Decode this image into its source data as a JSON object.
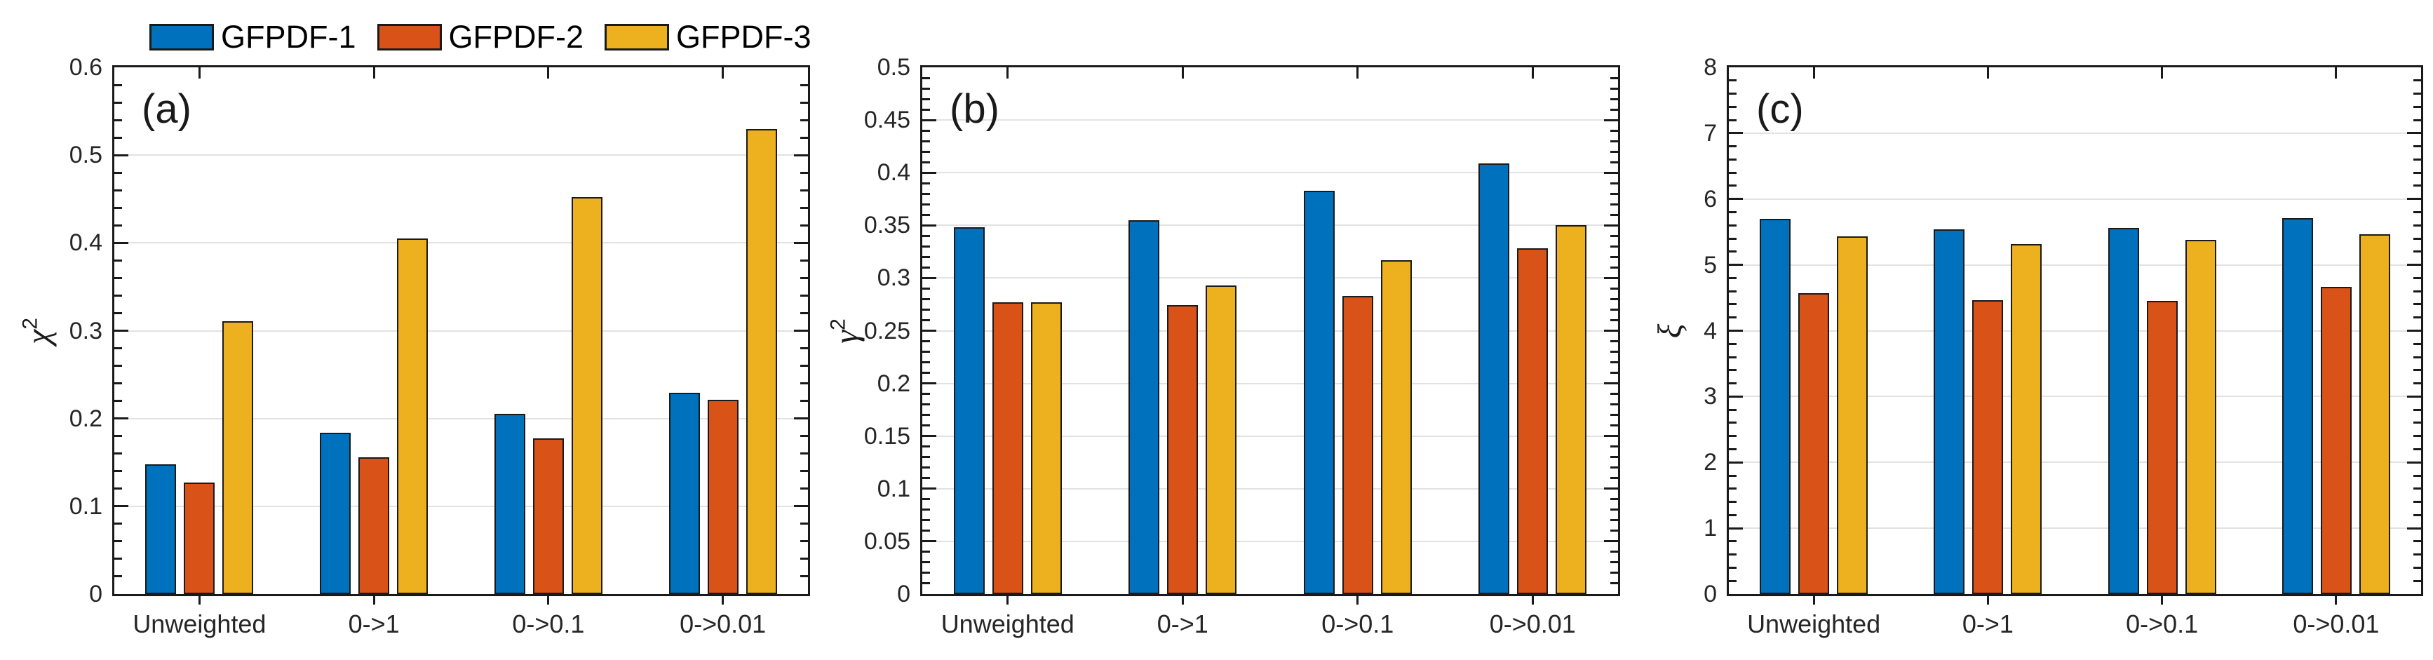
{
  "figure": {
    "background": "#ffffff"
  },
  "palette": {
    "series_blue": "#0072BD",
    "series_orange": "#D95319",
    "series_yellow": "#EDB120",
    "axis_color": "#1a1a1a",
    "grid_color": "#e2e2e2"
  },
  "legend": {
    "items": [
      {
        "label": "GFPDF-1",
        "color": "#0072BD"
      },
      {
        "label": "GFPDF-2",
        "color": "#D95319"
      },
      {
        "label": "GFPDF-3",
        "color": "#EDB120"
      }
    ],
    "position": "top-left"
  },
  "chart_data": [
    {
      "type": "bar",
      "panel_label": "(a)",
      "ylabel_symbol": "χ",
      "ylabel_exp": "2",
      "ylim": [
        0,
        0.6
      ],
      "yticks": [
        0,
        0.1,
        0.2,
        0.3,
        0.4,
        0.5,
        0.6
      ],
      "ytick_labels": [
        "0",
        "0.1",
        "0.2",
        "0.3",
        "0.4",
        "0.5",
        "0.6"
      ],
      "minor_tick_step": 0.02,
      "grid": "horizontal-major",
      "categories": [
        "Unweighted",
        "0->1",
        "0->0.1",
        "0->0.01"
      ],
      "series": [
        {
          "name": "GFPDF-1",
          "color": "#0072BD",
          "values": [
            0.148,
            0.184,
            0.205,
            0.229
          ]
        },
        {
          "name": "GFPDF-2",
          "color": "#D95319",
          "values": [
            0.127,
            0.156,
            0.177,
            0.221
          ]
        },
        {
          "name": "GFPDF-3",
          "color": "#EDB120",
          "values": [
            0.311,
            0.405,
            0.452,
            0.53
          ]
        }
      ]
    },
    {
      "type": "bar",
      "panel_label": "(b)",
      "ylabel_symbol": "γ",
      "ylabel_exp": "2",
      "ylim": [
        0,
        0.5
      ],
      "yticks": [
        0,
        0.05,
        0.1,
        0.15,
        0.2,
        0.25,
        0.3,
        0.35,
        0.4,
        0.45,
        0.5
      ],
      "ytick_labels": [
        "0",
        "0.05",
        "0.1",
        "0.15",
        "0.2",
        "0.25",
        "0.3",
        "0.35",
        "0.4",
        "0.45",
        "0.5"
      ],
      "minor_tick_step": 0.01,
      "grid": "horizontal-major",
      "categories": [
        "Unweighted",
        "0->1",
        "0->0.1",
        "0->0.01"
      ],
      "series": [
        {
          "name": "GFPDF-1",
          "color": "#0072BD",
          "values": [
            0.348,
            0.355,
            0.383,
            0.409
          ]
        },
        {
          "name": "GFPDF-2",
          "color": "#D95319",
          "values": [
            0.277,
            0.274,
            0.283,
            0.328
          ]
        },
        {
          "name": "GFPDF-3",
          "color": "#EDB120",
          "values": [
            0.277,
            0.293,
            0.317,
            0.35
          ]
        }
      ]
    },
    {
      "type": "bar",
      "panel_label": "(c)",
      "ylabel_symbol": "ξ",
      "ylabel_exp": "",
      "ylim": [
        0,
        8
      ],
      "yticks": [
        0,
        1,
        2,
        3,
        4,
        5,
        6,
        7,
        8
      ],
      "ytick_labels": [
        "0",
        "1",
        "2",
        "3",
        "4",
        "5",
        "6",
        "7",
        "8"
      ],
      "minor_tick_step": 0.2,
      "grid": "horizontal-major",
      "categories": [
        "Unweighted",
        "0->1",
        "0->0.1",
        "0->0.01"
      ],
      "series": [
        {
          "name": "GFPDF-1",
          "color": "#0072BD",
          "values": [
            5.7,
            5.54,
            5.56,
            5.71
          ]
        },
        {
          "name": "GFPDF-2",
          "color": "#D95319",
          "values": [
            4.57,
            4.46,
            4.45,
            4.67
          ]
        },
        {
          "name": "GFPDF-3",
          "color": "#EDB120",
          "values": [
            5.43,
            5.32,
            5.38,
            5.46
          ]
        }
      ]
    }
  ]
}
